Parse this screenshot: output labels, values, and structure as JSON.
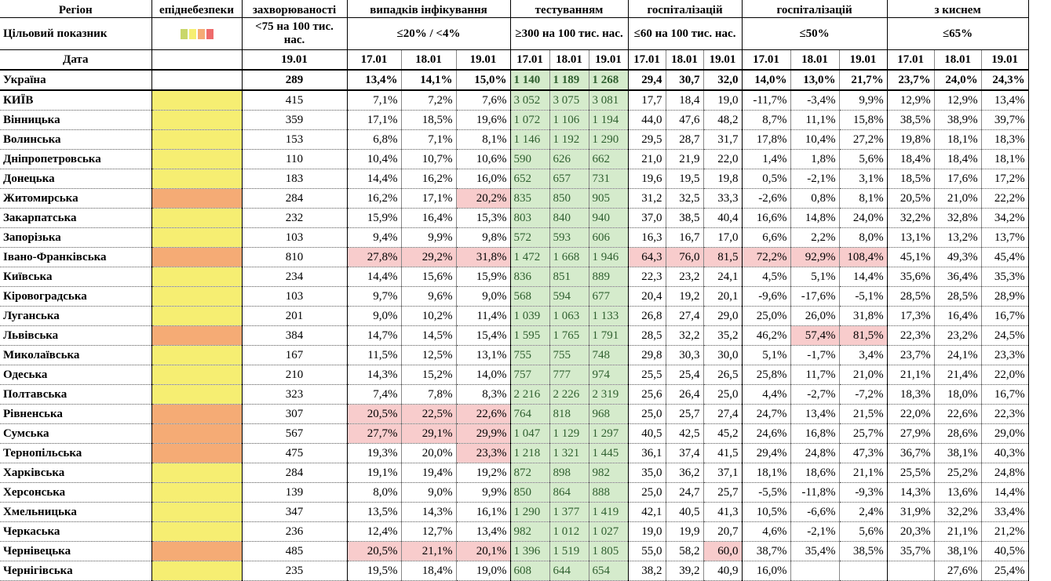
{
  "header": {
    "columns": [
      "Регіон",
      "епіднебезпеки",
      "захворюваності",
      "випадків інфікування",
      "тестуванням",
      "госпіталізацій",
      "госпіталізацій",
      "з киснем"
    ],
    "target_label": "Цільовий показник",
    "targets": [
      "<75 на 100 тис. нас.",
      "≤20% / <4%",
      "≥300 на 100 тис. нас.",
      "≤60 на 100 тис. нас.",
      "≤50%",
      "≤65%"
    ],
    "date_label": "Дата",
    "dates": [
      "19.01",
      "17.01",
      "18.01",
      "19.01",
      "17.01",
      "18.01",
      "19.01",
      "17.01",
      "18.01",
      "19.01",
      "17.01",
      "18.01",
      "19.01",
      "17.01",
      "18.01",
      "19.01"
    ]
  },
  "table": {
    "rows": [
      {
        "region": "Україна",
        "level": null,
        "cells": [
          "289",
          "13,4%",
          "14,1%",
          "15,0%",
          "1 140",
          "1 189",
          "1 268",
          "29,4",
          "30,7",
          "32,0",
          "14,0%",
          "13,0%",
          "21,7%",
          "23,7%",
          "24,0%",
          "24,3%"
        ],
        "highlight": []
      },
      {
        "region": "КИЇВ",
        "level": "#f6ee72",
        "cells": [
          "415",
          "7,1%",
          "7,2%",
          "7,6%",
          "3 052",
          "3 075",
          "3 081",
          "17,7",
          "18,4",
          "19,0",
          "-11,7%",
          "-3,4%",
          "9,9%",
          "12,9%",
          "12,9%",
          "13,4%"
        ],
        "highlight": []
      },
      {
        "region": "Вінницька",
        "level": "#f6ee72",
        "cells": [
          "359",
          "17,1%",
          "18,5%",
          "19,6%",
          "1 072",
          "1 106",
          "1 194",
          "44,0",
          "47,6",
          "48,2",
          "8,7%",
          "11,1%",
          "15,8%",
          "38,5%",
          "38,9%",
          "39,7%"
        ],
        "highlight": []
      },
      {
        "region": "Волинська",
        "level": "#f6ee72",
        "cells": [
          "153",
          "6,8%",
          "7,1%",
          "8,1%",
          "1 146",
          "1 192",
          "1 290",
          "29,5",
          "28,7",
          "31,7",
          "17,8%",
          "10,4%",
          "27,2%",
          "19,8%",
          "18,1%",
          "18,3%"
        ],
        "highlight": []
      },
      {
        "region": "Дніпропетровська",
        "level": "#f6ee72",
        "cells": [
          "110",
          "10,4%",
          "10,7%",
          "10,6%",
          "590",
          "626",
          "662",
          "21,0",
          "21,9",
          "22,0",
          "1,4%",
          "1,8%",
          "5,6%",
          "18,4%",
          "18,4%",
          "18,1%"
        ],
        "highlight": []
      },
      {
        "region": "Донецька",
        "level": "#f6ee72",
        "cells": [
          "183",
          "14,4%",
          "16,2%",
          "16,0%",
          "652",
          "657",
          "731",
          "19,6",
          "19,5",
          "19,8",
          "0,5%",
          "-2,1%",
          "3,1%",
          "18,5%",
          "17,6%",
          "17,2%"
        ],
        "highlight": []
      },
      {
        "region": "Житомирська",
        "level": "#f5ab75",
        "cells": [
          "284",
          "16,2%",
          "17,1%",
          "20,2%",
          "835",
          "850",
          "905",
          "31,2",
          "32,5",
          "33,3",
          "-2,6%",
          "0,8%",
          "8,1%",
          "20,5%",
          "21,0%",
          "22,2%"
        ],
        "highlight": [
          3
        ]
      },
      {
        "region": "Закарпатська",
        "level": "#f6ee72",
        "cells": [
          "232",
          "15,9%",
          "16,4%",
          "15,3%",
          "803",
          "840",
          "940",
          "37,0",
          "38,5",
          "40,4",
          "16,6%",
          "14,8%",
          "24,0%",
          "32,2%",
          "32,8%",
          "34,2%"
        ],
        "highlight": []
      },
      {
        "region": "Запорізька",
        "level": "#f6ee72",
        "cells": [
          "103",
          "9,4%",
          "9,9%",
          "9,8%",
          "572",
          "593",
          "606",
          "16,3",
          "16,7",
          "17,0",
          "6,6%",
          "2,2%",
          "8,0%",
          "13,1%",
          "13,2%",
          "13,7%"
        ],
        "highlight": []
      },
      {
        "region": "Івано-Франківська",
        "level": "#f5ab75",
        "cells": [
          "810",
          "27,8%",
          "29,2%",
          "31,8%",
          "1 472",
          "1 668",
          "1 946",
          "64,3",
          "76,0",
          "81,5",
          "72,2%",
          "92,9%",
          "108,4%",
          "45,1%",
          "49,3%",
          "45,4%"
        ],
        "highlight": [
          1,
          2,
          3,
          7,
          8,
          9,
          10,
          11,
          12
        ]
      },
      {
        "region": "Київська",
        "level": "#f6ee72",
        "cells": [
          "234",
          "14,4%",
          "15,6%",
          "15,9%",
          "836",
          "851",
          "889",
          "22,3",
          "23,2",
          "24,1",
          "4,5%",
          "5,1%",
          "14,4%",
          "35,6%",
          "36,4%",
          "35,3%"
        ],
        "highlight": []
      },
      {
        "region": "Кіровоградська",
        "level": "#f6ee72",
        "cells": [
          "103",
          "9,7%",
          "9,6%",
          "9,0%",
          "568",
          "594",
          "677",
          "20,4",
          "19,2",
          "20,1",
          "-9,6%",
          "-17,6%",
          "-5,1%",
          "28,5%",
          "28,5%",
          "28,9%"
        ],
        "highlight": []
      },
      {
        "region": "Луганська",
        "level": "#f6ee72",
        "cells": [
          "201",
          "9,0%",
          "10,2%",
          "11,4%",
          "1 039",
          "1 063",
          "1 133",
          "26,8",
          "27,4",
          "29,0",
          "25,0%",
          "26,0%",
          "31,8%",
          "17,3%",
          "16,4%",
          "16,7%"
        ],
        "highlight": []
      },
      {
        "region": "Львівська",
        "level": "#f5ab75",
        "cells": [
          "384",
          "14,7%",
          "14,5%",
          "15,4%",
          "1 595",
          "1 765",
          "1 791",
          "28,5",
          "32,2",
          "35,2",
          "46,2%",
          "57,4%",
          "81,5%",
          "22,3%",
          "23,2%",
          "24,5%"
        ],
        "highlight": [
          11,
          12
        ]
      },
      {
        "region": "Миколаївська",
        "level": "#f6ee72",
        "cells": [
          "167",
          "11,5%",
          "12,5%",
          "13,1%",
          "755",
          "755",
          "748",
          "29,8",
          "30,3",
          "30,0",
          "5,1%",
          "-1,7%",
          "3,4%",
          "23,7%",
          "24,1%",
          "23,3%"
        ],
        "highlight": []
      },
      {
        "region": "Одеська",
        "level": "#f6ee72",
        "cells": [
          "210",
          "14,3%",
          "15,2%",
          "14,0%",
          "757",
          "777",
          "974",
          "25,5",
          "25,4",
          "26,5",
          "25,8%",
          "11,7%",
          "21,0%",
          "21,1%",
          "21,4%",
          "22,0%"
        ],
        "highlight": []
      },
      {
        "region": "Полтавська",
        "level": "#f6ee72",
        "cells": [
          "323",
          "7,4%",
          "7,8%",
          "8,3%",
          "2 216",
          "2 226",
          "2 319",
          "25,6",
          "26,4",
          "25,0",
          "4,4%",
          "-2,7%",
          "-7,2%",
          "18,3%",
          "18,0%",
          "16,7%"
        ],
        "highlight": []
      },
      {
        "region": "Рівненська",
        "level": "#f5ab75",
        "cells": [
          "307",
          "20,5%",
          "22,5%",
          "22,6%",
          "764",
          "818",
          "968",
          "25,0",
          "25,7",
          "27,4",
          "24,7%",
          "13,4%",
          "21,5%",
          "22,0%",
          "22,6%",
          "22,3%"
        ],
        "highlight": [
          1,
          2,
          3
        ]
      },
      {
        "region": "Сумська",
        "level": "#f5ab75",
        "cells": [
          "567",
          "27,7%",
          "29,1%",
          "29,9%",
          "1 047",
          "1 129",
          "1 297",
          "40,5",
          "42,5",
          "45,2",
          "24,6%",
          "16,8%",
          "25,7%",
          "27,9%",
          "28,6%",
          "29,0%"
        ],
        "highlight": [
          1,
          2,
          3
        ]
      },
      {
        "region": "Тернопільська",
        "level": "#f5ab75",
        "cells": [
          "475",
          "19,3%",
          "20,0%",
          "23,3%",
          "1 218",
          "1 321",
          "1 445",
          "36,1",
          "37,4",
          "41,5",
          "29,4%",
          "24,8%",
          "47,3%",
          "36,7%",
          "38,1%",
          "40,3%"
        ],
        "highlight": [
          3
        ]
      },
      {
        "region": "Харківська",
        "level": "#f6ee72",
        "cells": [
          "284",
          "19,1%",
          "19,4%",
          "19,2%",
          "872",
          "898",
          "982",
          "35,0",
          "36,2",
          "37,1",
          "18,1%",
          "18,6%",
          "21,1%",
          "25,5%",
          "25,2%",
          "24,8%"
        ],
        "highlight": []
      },
      {
        "region": "Херсонська",
        "level": "#f6ee72",
        "cells": [
          "139",
          "8,0%",
          "9,0%",
          "9,9%",
          "850",
          "864",
          "888",
          "25,0",
          "24,7",
          "25,7",
          "-5,5%",
          "-11,8%",
          "-9,3%",
          "14,3%",
          "13,6%",
          "14,4%"
        ],
        "highlight": []
      },
      {
        "region": "Хмельницька",
        "level": "#f6ee72",
        "cells": [
          "347",
          "13,5%",
          "14,3%",
          "16,1%",
          "1 290",
          "1 377",
          "1 419",
          "42,1",
          "40,5",
          "41,3",
          "10,5%",
          "-6,6%",
          "2,4%",
          "31,9%",
          "32,2%",
          "33,4%"
        ],
        "highlight": []
      },
      {
        "region": "Черкаська",
        "level": "#f6ee72",
        "cells": [
          "236",
          "12,4%",
          "12,7%",
          "13,4%",
          "982",
          "1 012",
          "1 027",
          "19,0",
          "19,9",
          "20,7",
          "4,6%",
          "-2,1%",
          "5,6%",
          "20,3%",
          "21,1%",
          "21,2%"
        ],
        "highlight": []
      },
      {
        "region": "Чернівецька",
        "level": "#f5ab75",
        "cells": [
          "485",
          "20,5%",
          "21,1%",
          "20,1%",
          "1 396",
          "1 519",
          "1 805",
          "55,0",
          "58,2",
          "60,0",
          "38,7%",
          "35,4%",
          "38,5%",
          "35,7%",
          "38,1%",
          "40,5%"
        ],
        "highlight": [
          1,
          2,
          3,
          9
        ]
      },
      {
        "region": "Чернігівська",
        "level": "#f6ee72",
        "cells": [
          "235",
          "19,5%",
          "18,4%",
          "19,0%",
          "608",
          "644",
          "654",
          "38,2",
          "39,2",
          "40,9",
          "16,0%",
          null,
          null,
          null,
          "27,6%",
          "25,4%"
        ],
        "highlight": []
      }
    ]
  }
}
